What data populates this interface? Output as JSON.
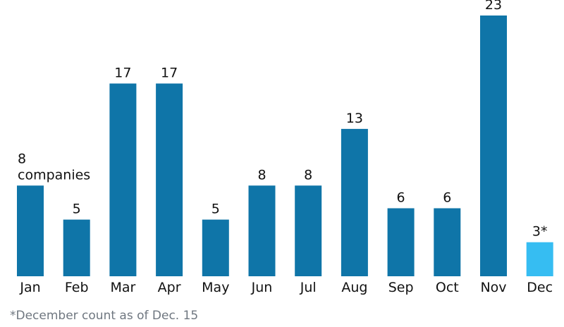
{
  "chart_data": {
    "type": "bar",
    "categories": [
      "Jan",
      "Feb",
      "Mar",
      "Apr",
      "May",
      "Jun",
      "Jul",
      "Aug",
      "Sep",
      "Oct",
      "Nov",
      "Dec"
    ],
    "values": [
      8,
      5,
      17,
      17,
      5,
      8,
      8,
      13,
      6,
      6,
      23,
      3
    ],
    "data_labels": [
      "8",
      "5",
      "17",
      "17",
      "5",
      "8",
      "8",
      "13",
      "6",
      "6",
      "23",
      "3*"
    ],
    "first_label_unit": "companies",
    "highlight_category": "Dec",
    "colors": {
      "bar": "#0f75a8",
      "highlight": "#36bdf2",
      "text": "#111111",
      "footnote": "#6f7780"
    },
    "ylim": [
      0,
      23
    ],
    "grid": false,
    "legend": "none",
    "title": "",
    "xlabel": "",
    "ylabel": ""
  },
  "footnote": "*December count as of Dec. 15"
}
